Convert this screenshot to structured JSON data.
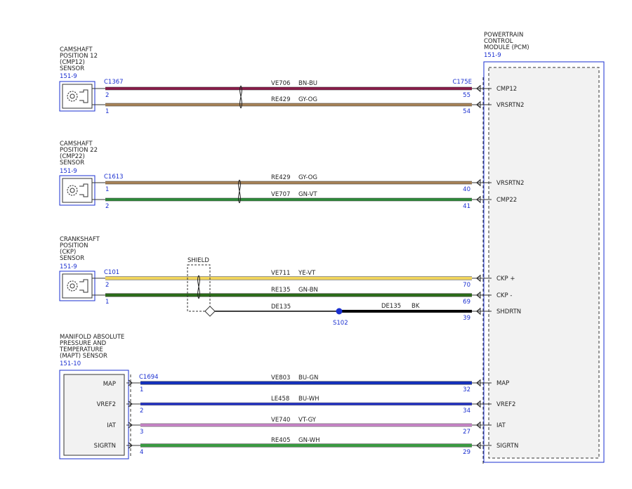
{
  "colors": {
    "blue": "#1a2fd0",
    "wire_bn_bu": "#8a1d4a",
    "wire_gy_og": "#a88358",
    "wire_gn_vt": "#2e8b3a",
    "wire_ye_vt": "#efd35c",
    "wire_gn_bn": "#2c6a1a",
    "wire_bk": "#000000",
    "wire_bu_gn": "#1530b8",
    "wire_bu_wh": "#2b3ad0",
    "wire_vt_gy": "#cc88cc",
    "wire_gn_wh": "#3a9a42"
  },
  "pcm": {
    "title_lines": [
      "POWERTRAIN",
      "CONTROL",
      "MODULE (PCM)"
    ],
    "ref": "151-9",
    "connector": "C175E"
  },
  "sensors": [
    {
      "title_lines": [
        "CAMSHAFT",
        "POSITION 12",
        "(CMP12)",
        "SENSOR"
      ],
      "ref": "151-9",
      "connector": "C1367",
      "icon": "gear-icon"
    },
    {
      "title_lines": [
        "CAMSHAFT",
        "POSITION 22",
        "(CMP22)",
        "SENSOR"
      ],
      "ref": "151-9",
      "connector": "C1613",
      "icon": "gear-icon"
    },
    {
      "title_lines": [
        "CRANKSHAFT",
        "POSITION",
        "(CKP)",
        "SENSOR"
      ],
      "ref": "151-9",
      "connector": "C101",
      "icon": "gear-icon"
    },
    {
      "title_lines": [
        "MANIFOLD ABSOLUTE",
        "PRESSURE AND",
        "TEMPERATURE",
        "(MAPT) SENSOR"
      ],
      "ref": "151-10",
      "connector": "C1694",
      "pins": [
        "MAP",
        "VREF2",
        "IAT",
        "SIGRTN"
      ]
    }
  ],
  "wires": [
    {
      "circuit": "VE706",
      "color_code": "BN-BU",
      "sensor_pin": "2",
      "pcm_pin": "55",
      "pcm_label": "CMP12",
      "color_key": "wire_bn_bu"
    },
    {
      "circuit": "RE429",
      "color_code": "GY-OG",
      "sensor_pin": "1",
      "pcm_pin": "54",
      "pcm_label": "VRSRTN2",
      "color_key": "wire_gy_og"
    },
    {
      "circuit": "RE429",
      "color_code": "GY-OG",
      "sensor_pin": "1",
      "pcm_pin": "40",
      "pcm_label": "VRSRTN2",
      "color_key": "wire_gy_og"
    },
    {
      "circuit": "VE707",
      "color_code": "GN-VT",
      "sensor_pin": "2",
      "pcm_pin": "41",
      "pcm_label": "CMP22",
      "color_key": "wire_gn_vt"
    },
    {
      "circuit": "VE711",
      "color_code": "YE-VT",
      "sensor_pin": "2",
      "pcm_pin": "70",
      "pcm_label": "CKP +",
      "color_key": "wire_ye_vt"
    },
    {
      "circuit": "RE135",
      "color_code": "GN-BN",
      "sensor_pin": "1",
      "pcm_pin": "69",
      "pcm_label": "CKP -",
      "color_key": "wire_gn_bn"
    },
    {
      "circuit": "DE135",
      "color_code": "BK",
      "sensor_pin": "",
      "pcm_pin": "39",
      "pcm_label": "SHDRTN",
      "color_key": "wire_bk"
    },
    {
      "circuit": "VE803",
      "color_code": "BU-GN",
      "sensor_pin": "1",
      "pcm_pin": "32",
      "pcm_label": "MAP",
      "color_key": "wire_bu_gn"
    },
    {
      "circuit": "LE458",
      "color_code": "BU-WH",
      "sensor_pin": "2",
      "pcm_pin": "34",
      "pcm_label": "VREF2",
      "color_key": "wire_bu_wh"
    },
    {
      "circuit": "VE740",
      "color_code": "VT-GY",
      "sensor_pin": "3",
      "pcm_pin": "27",
      "pcm_label": "IAT",
      "color_key": "wire_vt_gy"
    },
    {
      "circuit": "RE405",
      "color_code": "GN-WH",
      "sensor_pin": "4",
      "pcm_pin": "29",
      "pcm_label": "SIGRTN",
      "color_key": "wire_gn_wh"
    }
  ],
  "shield": {
    "label": "SHIELD",
    "circuit": "DE135",
    "splice": "S102"
  }
}
